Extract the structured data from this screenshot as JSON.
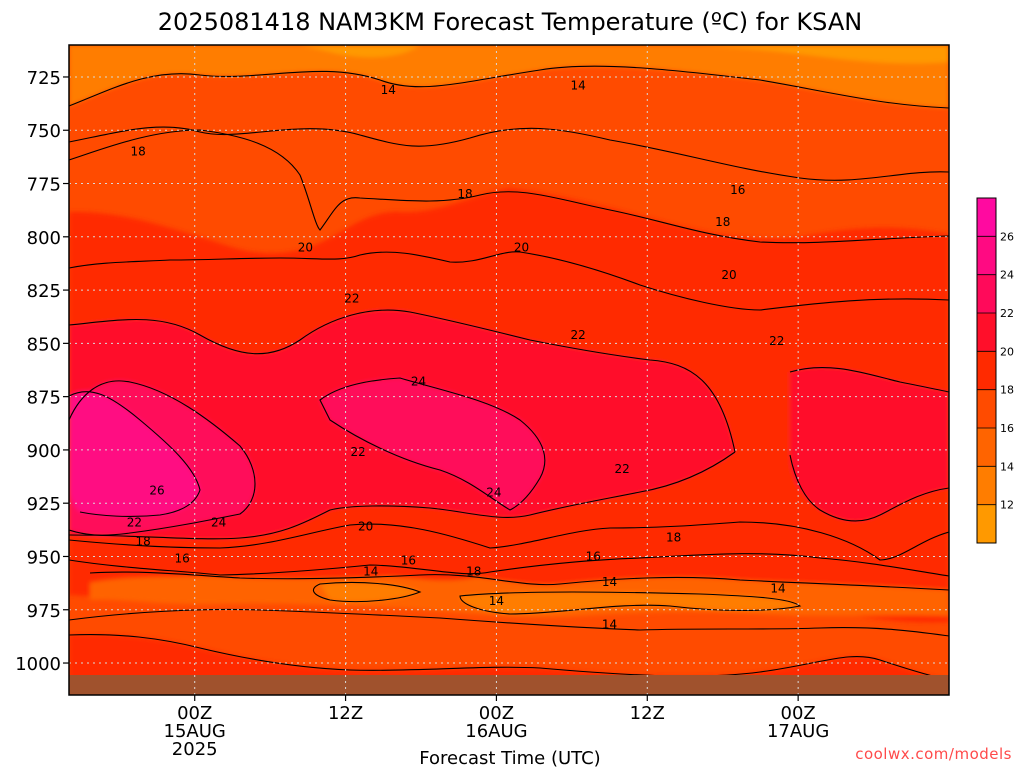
{
  "chart_data": {
    "type": "time-height contour",
    "title": "2025081418 NAM3KM Forecast Temperature (ºC) for KSAN",
    "xlabel": "Forecast Time (UTC)",
    "ylabel": "",
    "y_scale": "pressure (inverted, hPa)",
    "ylim": [
      1015,
      710
    ],
    "y_ticks": [
      725,
      750,
      775,
      800,
      825,
      850,
      875,
      900,
      925,
      950,
      975,
      1000
    ],
    "x_ticks": [
      {
        "hour": 0,
        "line1": "00Z",
        "line2": "15AUG",
        "line3": "2025"
      },
      {
        "hour": 12,
        "line1": "12Z",
        "line2": "",
        "line3": ""
      },
      {
        "hour": 24,
        "line1": "00Z",
        "line2": "16AUG",
        "line3": ""
      },
      {
        "hour": 36,
        "line1": "12Z",
        "line2": "",
        "line3": ""
      },
      {
        "hour": 48,
        "line1": "00Z",
        "line2": "17AUG",
        "line3": ""
      }
    ],
    "grid": "dotted",
    "contour_levels": [
      12,
      14,
      16,
      18,
      20,
      22,
      24,
      26
    ],
    "colorbar": {
      "placement": "right",
      "levels": [
        12,
        14,
        16,
        18,
        20,
        22,
        24,
        26
      ],
      "label_ticks": [
        12,
        14,
        16,
        18,
        20,
        22,
        24,
        26
      ],
      "colors": [
        "#ff9900",
        "#ff7d00",
        "#ff6400",
        "#ff4b00",
        "#ff2a00",
        "#ff0f2a",
        "#ff0a5a",
        "#ff0a82",
        "#ff0aa0"
      ]
    },
    "contour_labels": [
      {
        "value": 14,
        "hour": 15.4,
        "p": 731
      },
      {
        "value": 14,
        "hour": 30.5,
        "p": 729
      },
      {
        "value": 18,
        "hour": -4.5,
        "p": 760
      },
      {
        "value": 16,
        "hour": 43.2,
        "p": 778
      },
      {
        "value": 18,
        "hour": 21.5,
        "p": 780
      },
      {
        "value": 18,
        "hour": 42.0,
        "p": 793
      },
      {
        "value": 20,
        "hour": 8.8,
        "p": 805
      },
      {
        "value": 20,
        "hour": 26.0,
        "p": 805
      },
      {
        "value": 20,
        "hour": 42.5,
        "p": 818
      },
      {
        "value": 22,
        "hour": 12.5,
        "p": 829
      },
      {
        "value": 22,
        "hour": 30.5,
        "p": 846
      },
      {
        "value": 22,
        "hour": 46.3,
        "p": 849
      },
      {
        "value": 24,
        "hour": 17.8,
        "p": 868
      },
      {
        "value": 26,
        "hour": -3.0,
        "p": 919
      },
      {
        "value": 22,
        "hour": 13.0,
        "p": 901
      },
      {
        "value": 22,
        "hour": 34.0,
        "p": 909
      },
      {
        "value": 24,
        "hour": 23.8,
        "p": 920
      },
      {
        "value": 22,
        "hour": -4.8,
        "p": 934
      },
      {
        "value": 24,
        "hour": 1.9,
        "p": 934
      },
      {
        "value": 20,
        "hour": 13.6,
        "p": 936
      },
      {
        "value": 18,
        "hour": 38.1,
        "p": 941
      },
      {
        "value": 18,
        "hour": -4.1,
        "p": 943
      },
      {
        "value": 16,
        "hour": -1.0,
        "p": 951
      },
      {
        "value": 16,
        "hour": 17.0,
        "p": 952
      },
      {
        "value": 16,
        "hour": 31.7,
        "p": 950
      },
      {
        "value": 14,
        "hour": 14.0,
        "p": 957
      },
      {
        "value": 18,
        "hour": 22.2,
        "p": 957
      },
      {
        "value": 14,
        "hour": 33.0,
        "p": 962
      },
      {
        "value": 14,
        "hour": 46.4,
        "p": 965
      },
      {
        "value": 14,
        "hour": 24.0,
        "p": 971
      },
      {
        "value": 14,
        "hour": 33.0,
        "p": 982
      }
    ]
  },
  "credit": "coolwx.com/models"
}
